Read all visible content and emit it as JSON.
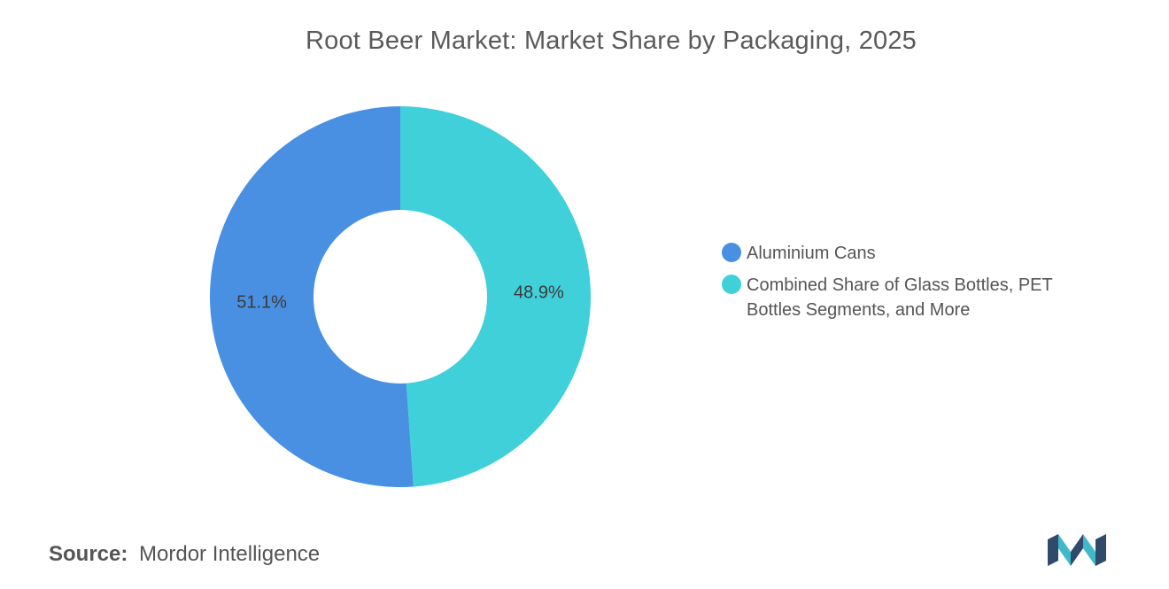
{
  "chart_data": {
    "type": "pie",
    "variant": "donut",
    "title": "Root Beer Market: Market Share by Packaging, 2025",
    "categories": [
      "Aluminium Cans",
      "Combined Share of Glass Bottles, PET Bottles Segments, and More"
    ],
    "values": [
      51.1,
      48.9
    ],
    "data_labels": [
      "51.1%",
      "48.9%"
    ],
    "colors": [
      "#4a90e2",
      "#40d0d9"
    ],
    "legend_position": "right",
    "grid": false
  },
  "source": {
    "label": "Source:",
    "value": "Mordor Intelligence"
  },
  "logo": {
    "icon": "mordor-intelligence-logo-icon",
    "colors": [
      "#2f4a6a",
      "#3fb8c8"
    ]
  }
}
